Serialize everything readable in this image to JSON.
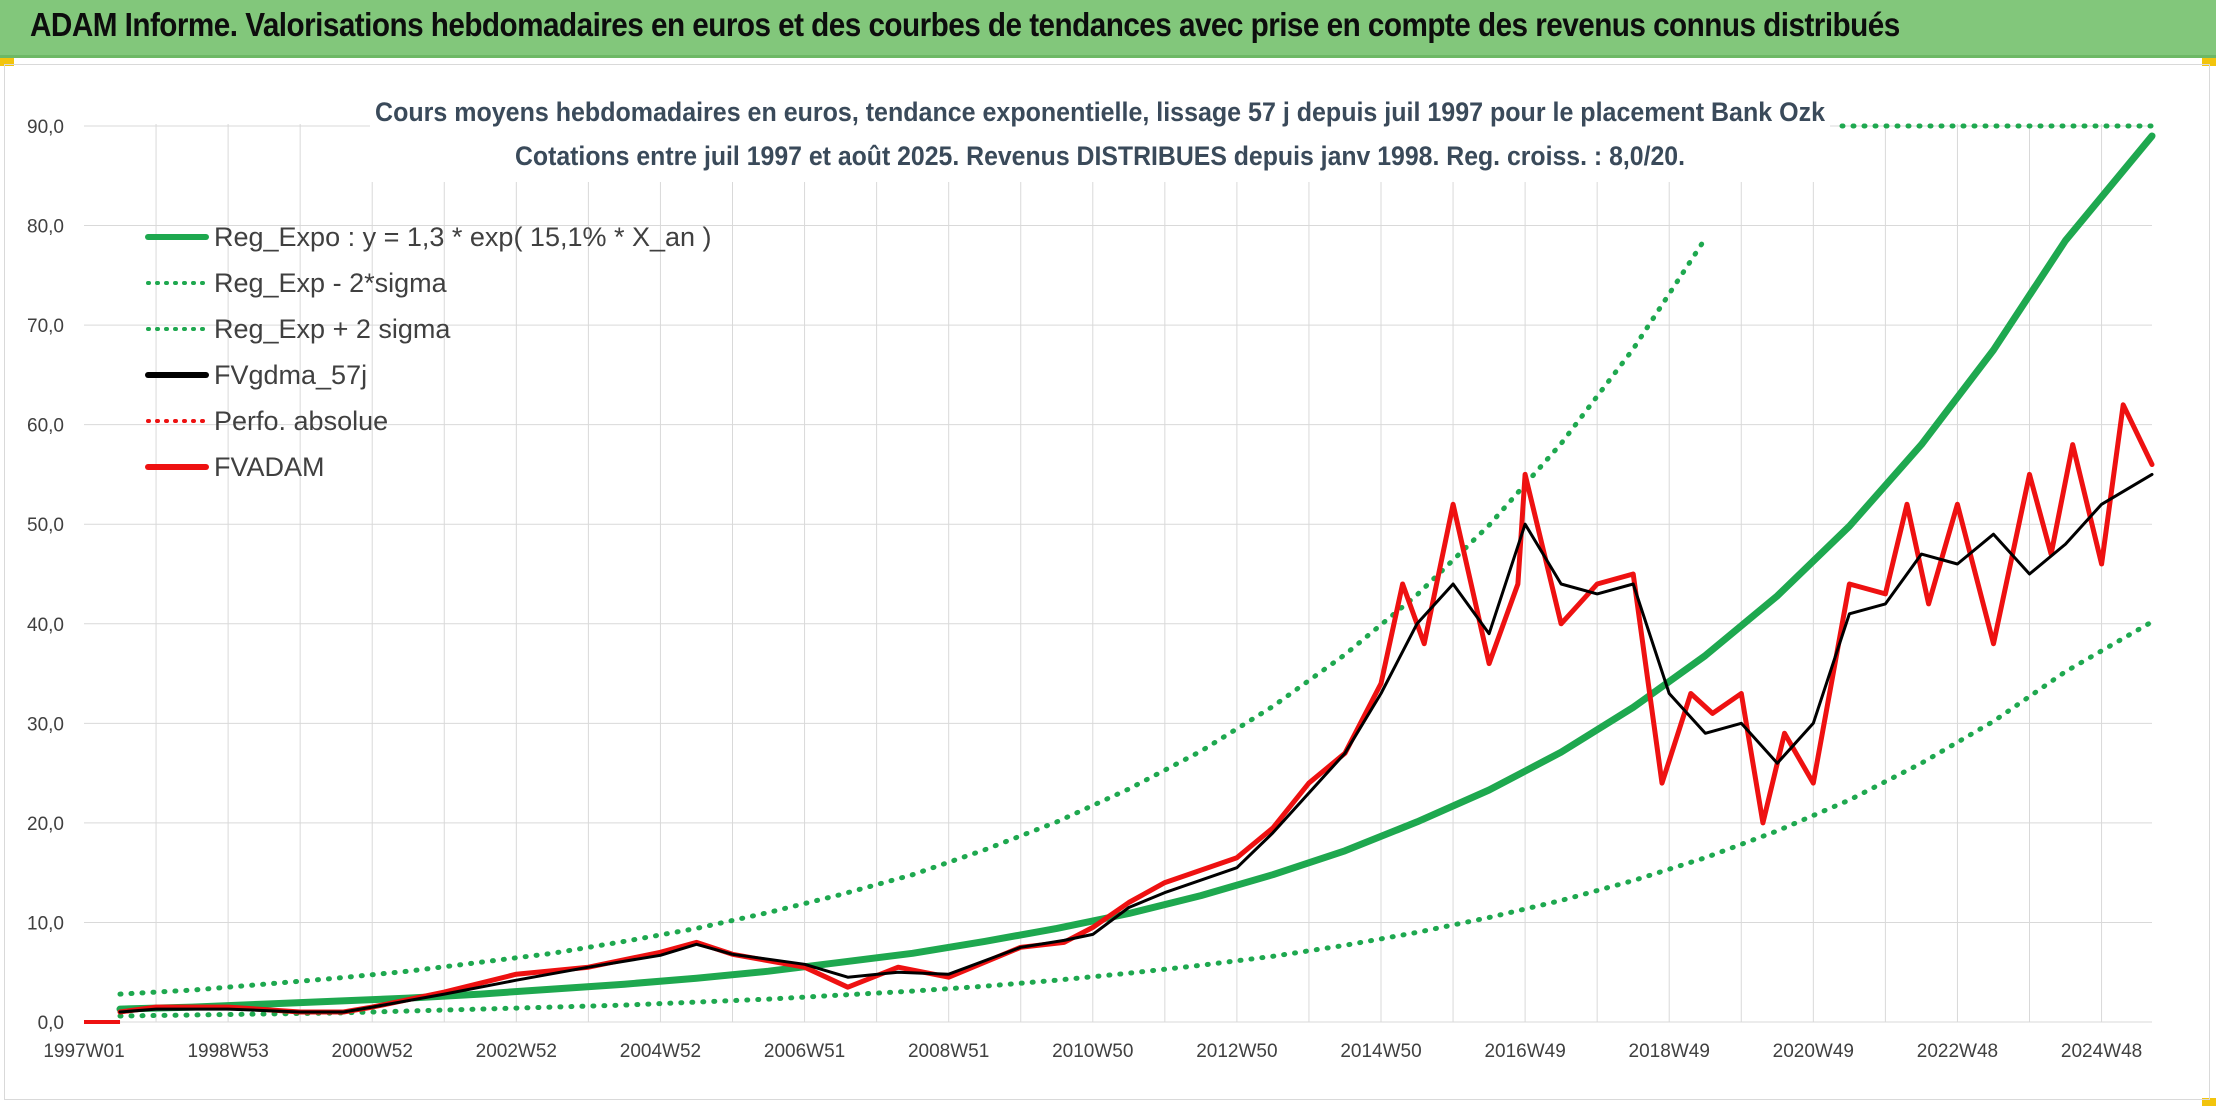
{
  "header": {
    "title": "ADAM Informe. Valorisations hebdomadaires en euros et des courbes de tendances avec prise en compte des revenus connus distribués"
  },
  "colors": {
    "header_background": "#82c77b",
    "trend_green": "#1ea84f",
    "fvadam_red": "#ee1111",
    "fvgdma_black": "#000000",
    "grid": "#d9d9d9"
  },
  "chart_data": {
    "type": "line",
    "title_line1": "Cours moyens hebdomadaires en euros, tendance exponentielle, lissage 57 j depuis juil 1997 pour le placement Bank Ozk",
    "title_line2": "Cotations entre juil 1997 et août 2025. Revenus DISTRIBUES depuis janv 1998. Reg. croiss. : 8,0/20.",
    "xlabel": "",
    "ylabel": "",
    "ylim": [
      0,
      90
    ],
    "y_ticks": [
      "0,0",
      "10,0",
      "20,0",
      "30,0",
      "40,0",
      "50,0",
      "60,0",
      "70,0",
      "80,0",
      "90,0"
    ],
    "x_tick_labels": [
      "1997W01",
      "1998W53",
      "2000W52",
      "2002W52",
      "2004W52",
      "2006W51",
      "2008W51",
      "2010W50",
      "2012W50",
      "2014W50",
      "2016W49",
      "2018W49",
      "2020W49",
      "2022W48",
      "2024W48"
    ],
    "x_range": [
      1997.0,
      2025.7
    ],
    "grid": true,
    "legend_position": "top-left",
    "legend": [
      {
        "label": "Reg_Expo : y = 1,3 * exp( 15,1% *  X_an )",
        "style": "solid",
        "color": "#1ea84f"
      },
      {
        "label": "Reg_Exp - 2*sigma",
        "style": "dotted",
        "color": "#1ea84f"
      },
      {
        "label": "Reg_Exp + 2 sigma",
        "style": "dotted",
        "color": "#1ea84f"
      },
      {
        "label": "FVgdma_57j",
        "style": "solid",
        "color": "#000000"
      },
      {
        "label": "Perfo. absolue",
        "style": "dotted",
        "color": "#ee1111"
      },
      {
        "label": "FVADAM",
        "style": "solid",
        "color": "#ee1111"
      }
    ],
    "series": [
      {
        "name": "Reg_Expo : y = 1,3 * exp( 15,1% *  X_an )",
        "x": [
          1997.5,
          1998.5,
          1999.5,
          2000.5,
          2001.5,
          2002.5,
          2003.5,
          2004.5,
          2005.5,
          2006.5,
          2007.5,
          2008.5,
          2009.5,
          2010.5,
          2011.5,
          2012.5,
          2013.5,
          2014.5,
          2015.5,
          2016.5,
          2017.5,
          2018.5,
          2019.5,
          2020.5,
          2021.5,
          2022.5,
          2023.5,
          2024.5,
          2025.7
        ],
        "values": [
          1.3,
          1.5,
          1.8,
          2.1,
          2.4,
          2.8,
          3.3,
          3.8,
          4.4,
          5.1,
          6.0,
          6.9,
          8.1,
          9.4,
          10.9,
          12.7,
          14.8,
          17.2,
          20.1,
          23.3,
          27.1,
          31.6,
          36.8,
          42.8,
          49.8,
          58.0,
          67.5,
          78.5,
          89.0
        ]
      },
      {
        "name": "Reg_Exp - 2*sigma",
        "x": [
          1997.5,
          1998.5,
          1999.5,
          2000.5,
          2001.5,
          2002.5,
          2003.5,
          2004.5,
          2005.5,
          2006.5,
          2007.5,
          2008.5,
          2009.5,
          2010.5,
          2011.5,
          2012.5,
          2013.5,
          2014.5,
          2015.5,
          2016.5,
          2017.5,
          2018.5,
          2019.5,
          2020.5,
          2021.5,
          2022.5,
          2023.5,
          2024.5,
          2025.7
        ],
        "values": [
          0.6,
          0.7,
          0.8,
          0.9,
          1.1,
          1.3,
          1.5,
          1.7,
          2.0,
          2.3,
          2.7,
          3.1,
          3.6,
          4.2,
          4.9,
          5.7,
          6.6,
          7.7,
          9.0,
          10.5,
          12.2,
          14.2,
          16.5,
          19.2,
          22.3,
          26.0,
          30.2,
          35.2,
          40.2
        ]
      },
      {
        "name": "Reg_Exp + 2 sigma",
        "x": [
          1997.5,
          1998.5,
          1999.5,
          2000.5,
          2001.5,
          2002.5,
          2003.5,
          2004.5,
          2005.5,
          2006.5,
          2007.5,
          2008.5,
          2009.5,
          2010.5,
          2011.5,
          2012.5,
          2013.5,
          2014.5,
          2015.5,
          2016.5,
          2017.5,
          2018.5,
          2019.5
        ],
        "values": [
          2.8,
          3.2,
          3.8,
          4.4,
          5.1,
          6.0,
          6.9,
          8.1,
          9.4,
          11.0,
          12.8,
          14.8,
          17.3,
          20.1,
          23.4,
          27.2,
          31.7,
          36.9,
          42.9,
          49.9,
          58.1,
          67.6,
          78.7
        ]
      },
      {
        "name": "FVgdma_57j",
        "x": [
          1997.5,
          1998.0,
          1999.0,
          2000.0,
          2000.6,
          2001.0,
          2002.0,
          2003.0,
          2004.0,
          2005.0,
          2005.5,
          2006.0,
          2007.0,
          2007.6,
          2008.3,
          2009.0,
          2010.0,
          2010.6,
          2011.0,
          2011.5,
          2012.0,
          2013.0,
          2013.5,
          2014.0,
          2014.5,
          2015.0,
          2015.5,
          2016.0,
          2016.5,
          2017.0,
          2017.5,
          2018.0,
          2018.5,
          2019.0,
          2019.5,
          2020.0,
          2020.5,
          2021.0,
          2021.5,
          2022.0,
          2022.5,
          2023.0,
          2023.5,
          2024.0,
          2024.5,
          2025.0,
          2025.7
        ],
        "values": [
          1.0,
          1.3,
          1.3,
          1.0,
          1.0,
          1.5,
          2.8,
          4.2,
          5.5,
          6.7,
          7.8,
          6.8,
          5.8,
          4.5,
          5.0,
          4.8,
          7.5,
          8.2,
          8.8,
          11.5,
          13.0,
          15.5,
          19.0,
          23.0,
          27.0,
          33.0,
          40.0,
          44.0,
          39.0,
          50.0,
          44.0,
          43.0,
          44.0,
          33.0,
          29.0,
          30.0,
          26.0,
          30.0,
          41.0,
          42.0,
          47.0,
          46.0,
          49.0,
          45.0,
          48.0,
          52.0,
          55.0
        ]
      },
      {
        "name": "FVADAM",
        "x": [
          1997.5,
          1998.0,
          1999.0,
          2000.0,
          2000.6,
          2001.0,
          2002.0,
          2003.0,
          2004.0,
          2005.0,
          2005.5,
          2006.0,
          2007.0,
          2007.6,
          2008.3,
          2009.0,
          2010.0,
          2010.6,
          2011.0,
          2011.5,
          2012.0,
          2013.0,
          2013.5,
          2014.0,
          2014.5,
          2015.0,
          2015.3,
          2015.6,
          2016.0,
          2016.5,
          2016.9,
          2017.0,
          2017.5,
          2018.0,
          2018.5,
          2018.9,
          2019.3,
          2019.6,
          2020.0,
          2020.3,
          2020.6,
          2021.0,
          2021.5,
          2022.0,
          2022.3,
          2022.6,
          2023.0,
          2023.5,
          2024.0,
          2024.3,
          2024.6,
          2025.0,
          2025.3,
          2025.7
        ],
        "values": [
          1.0,
          1.5,
          1.5,
          1.0,
          1.0,
          1.5,
          3.0,
          4.8,
          5.5,
          7.0,
          8.0,
          6.8,
          5.5,
          3.5,
          5.5,
          4.5,
          7.5,
          8.0,
          9.5,
          12.0,
          14.0,
          16.5,
          19.5,
          24.0,
          27.0,
          34.0,
          44.0,
          38.0,
          52.0,
          36.0,
          44.0,
          55.0,
          40.0,
          44.0,
          45.0,
          24.0,
          33.0,
          31.0,
          33.0,
          20.0,
          29.0,
          24.0,
          44.0,
          43.0,
          52.0,
          42.0,
          52.0,
          38.0,
          55.0,
          47.0,
          58.0,
          46.0,
          62.0,
          56.0
        ]
      }
    ]
  }
}
